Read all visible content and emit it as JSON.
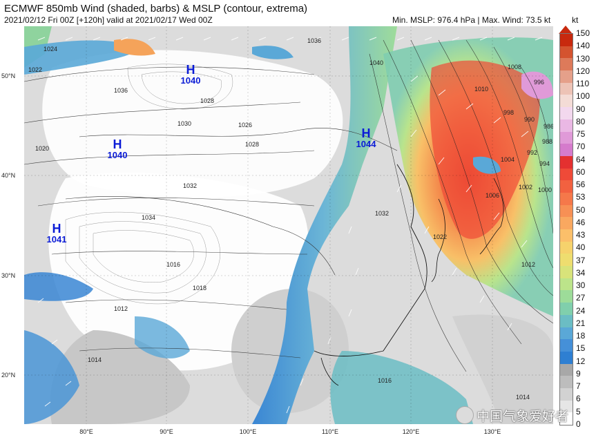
{
  "header": {
    "title": "ECMWF 850mb Wind (shaded, barbs) & MSLP (contour, extrema)",
    "subtitle": "2021/02/12 Fri 00Z [+120h] valid at 2021/02/17 Wed 00Z",
    "stats": "Min. MSLP: 976.4 hPa | Max. Wind: 73.5 kt",
    "unit": "kt"
  },
  "lat_labels": [
    "50°N",
    "40°N",
    "30°N",
    "20°N"
  ],
  "lon_labels": [
    "80°E",
    "90°E",
    "100°E",
    "110°E",
    "120°E",
    "130°E"
  ],
  "highs": [
    {
      "letter": "H",
      "value": "1040"
    },
    {
      "letter": "H",
      "value": "1040"
    },
    {
      "letter": "H",
      "value": "1044"
    },
    {
      "letter": "H",
      "value": "1041"
    }
  ],
  "isobar_labels": [
    "1024",
    "1022",
    "1028",
    "1026",
    "1030",
    "1032",
    "1034",
    "1036",
    "1020",
    "1018",
    "1016",
    "1014",
    "1012",
    "1010",
    "1008",
    "1006",
    "1004",
    "1002",
    "1000",
    "998",
    "996",
    "994",
    "992",
    "990",
    "988",
    "986",
    "1022",
    "1028",
    "1032",
    "1016",
    "1014",
    "1012",
    "1040",
    "1036"
  ],
  "colorbar": {
    "labels": [
      "150",
      "140",
      "130",
      "120",
      "110",
      "100",
      "90",
      "80",
      "75",
      "70",
      "64",
      "60",
      "56",
      "53",
      "50",
      "46",
      "43",
      "40",
      "37",
      "34",
      "30",
      "27",
      "24",
      "21",
      "18",
      "15",
      "12",
      "9",
      "7",
      "6",
      "5",
      "0"
    ],
    "colors": [
      "#c8290e",
      "#d4532f",
      "#dd7a5a",
      "#e5a08a",
      "#edc3b6",
      "#f4dcd6",
      "#f3d8ee",
      "#eab8e4",
      "#e09ad8",
      "#d57bcc",
      "#e43030",
      "#ef4a38",
      "#f26140",
      "#f5784a",
      "#f79055",
      "#f9a860",
      "#fbbf6a",
      "#f6d26c",
      "#eedd6f",
      "#d8e37a",
      "#bce48a",
      "#9ddc99",
      "#80cfac",
      "#6bbdc4",
      "#5aa8d7",
      "#4590d8",
      "#2e7fd2",
      "#a8a8a8",
      "#bdbdbd",
      "#d2d2d2",
      "#e6e6e6",
      "#ffffff"
    ]
  },
  "watermark": {
    "text": "中国气象爱好者",
    "icon": "wechat-icon"
  }
}
